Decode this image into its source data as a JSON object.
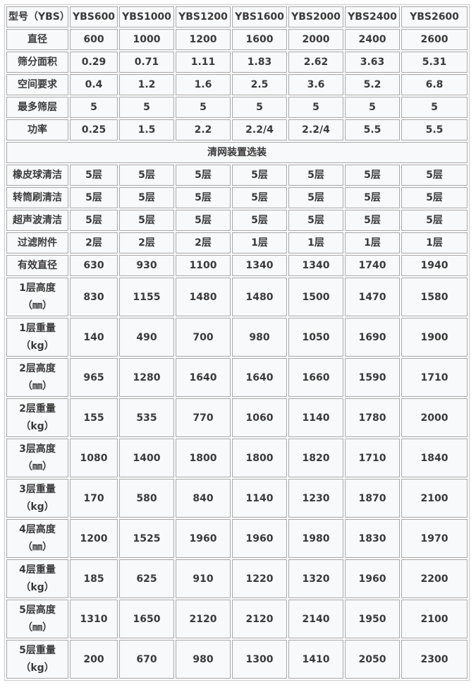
{
  "header": [
    "型号（YBS）",
    "YBS600",
    "YBS1000",
    "YBS1200",
    "YBS1600",
    "YBS2000",
    "YBS2400",
    "YBS2600"
  ],
  "rows_top": [
    [
      "直径",
      "600",
      "1000",
      "1200",
      "1600",
      "2000",
      "2400",
      "2600"
    ],
    [
      "筛分面积",
      "0.29",
      "0.71",
      "1.11",
      "1.83",
      "2.62",
      "3.63",
      "5.31"
    ],
    [
      "空间要求",
      "0.4",
      "1.2",
      "1.6",
      "2.5",
      "3.6",
      "5.2",
      "6.8"
    ],
    [
      "最多筛层",
      "5",
      "5",
      "5",
      "5",
      "5",
      "5",
      "5"
    ],
    [
      "功率",
      "0.25",
      "1.5",
      "2.2",
      "2.2/4",
      "2.2/4",
      "5.5",
      "5.5"
    ]
  ],
  "section_title": "清网装置选装",
  "rows_mid": [
    [
      "橡皮球清洁",
      "5层",
      "5层",
      "5层",
      "5层",
      "5层",
      "5层",
      "5层"
    ],
    [
      "转筒刷清洁",
      "5层",
      "5层",
      "5层",
      "5层",
      "5层",
      "5层",
      "5层"
    ],
    [
      "超声波清洁",
      "5层",
      "5层",
      "5层",
      "5层",
      "5层",
      "5层",
      "5层"
    ],
    [
      "过滤附件",
      "2层",
      "2层",
      "2层",
      "1层",
      "1层",
      "1层",
      "1层"
    ],
    [
      "有效直径",
      "630",
      "930",
      "1100",
      "1340",
      "1340",
      "1740",
      "1940"
    ]
  ],
  "rows_tall": [
    [
      "1层高度",
      "（㎜）",
      "830",
      "1155",
      "1480",
      "1480",
      "1500",
      "1470",
      "1580"
    ],
    [
      "1层重量",
      "（kg）",
      "140",
      "490",
      "700",
      "980",
      "1050",
      "1690",
      "1900"
    ],
    [
      "2层高度",
      "（㎜）",
      "965",
      "1280",
      "1640",
      "1640",
      "1660",
      "1590",
      "1710"
    ],
    [
      "2层重量",
      "（kg）",
      "155",
      "535",
      "770",
      "1060",
      "1140",
      "1780",
      "2000"
    ],
    [
      "3层高度",
      "（㎜）",
      "1080",
      "1400",
      "1800",
      "1800",
      "1820",
      "1710",
      "1840"
    ],
    [
      "3层重量",
      "（kg）",
      "170",
      "580",
      "840",
      "1140",
      "1230",
      "1870",
      "2100"
    ],
    [
      "4层高度",
      "（㎜）",
      "1200",
      "1525",
      "1960",
      "1960",
      "1980",
      "1830",
      "1970"
    ],
    [
      "4层重量",
      "（kg）",
      "185",
      "625",
      "910",
      "1220",
      "1320",
      "1960",
      "2200"
    ],
    [
      "5层高度",
      "（㎜）",
      "1310",
      "1650",
      "2120",
      "2120",
      "2140",
      "1950",
      "2100"
    ],
    [
      "5层重量",
      "（kg）",
      "200",
      "670",
      "980",
      "1300",
      "1410",
      "2050",
      "2300"
    ]
  ]
}
